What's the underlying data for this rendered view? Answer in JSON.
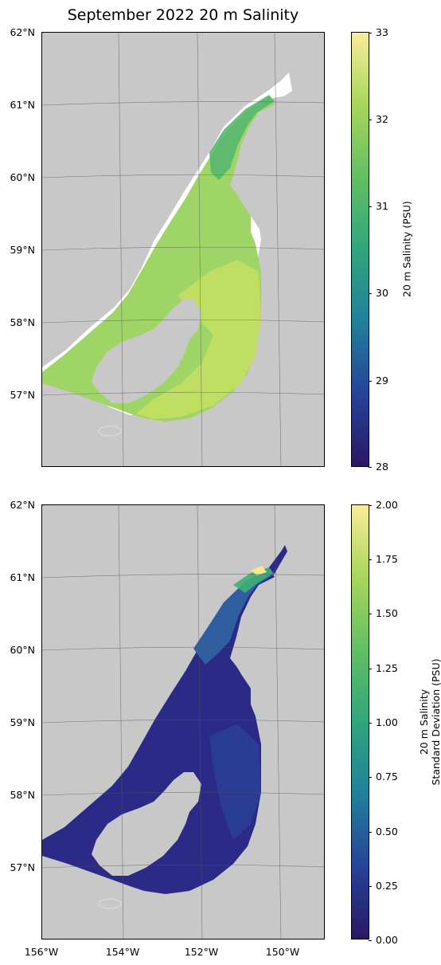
{
  "title": "September 2022 20 m Salinity",
  "lat_labels": [
    "62°N",
    "61°N",
    "60°N",
    "59°N",
    "58°N",
    "57°N"
  ],
  "lon_labels": [
    "156°W",
    "154°W",
    "152°W",
    "150°W"
  ],
  "top_panel": {
    "colorbar_label": "20 m Salinity (PSU)",
    "colorbar_ticks": [
      "33",
      "32",
      "31",
      "30",
      "29",
      "28"
    ],
    "range": [
      28,
      33
    ]
  },
  "bottom_panel": {
    "colorbar_label_line1": "20 m Salinity",
    "colorbar_label_line2": "Standard Deviation (PSU)",
    "colorbar_ticks": [
      "2.00",
      "1.75",
      "1.50",
      "1.25",
      "1.00",
      "0.75",
      "0.50",
      "0.25",
      "0.00"
    ],
    "range": [
      0,
      2
    ]
  },
  "colors": {
    "land": "#c8c8c8",
    "no_data": "#ffffff",
    "salinity_water": "#9ed565",
    "salinity_south": "#c3df62",
    "salinity_inlet": "#5fbf6d",
    "stddev_water": "#2b2a86",
    "stddev_mid": "#2c3f98",
    "stddev_high": "#3fae77"
  }
}
